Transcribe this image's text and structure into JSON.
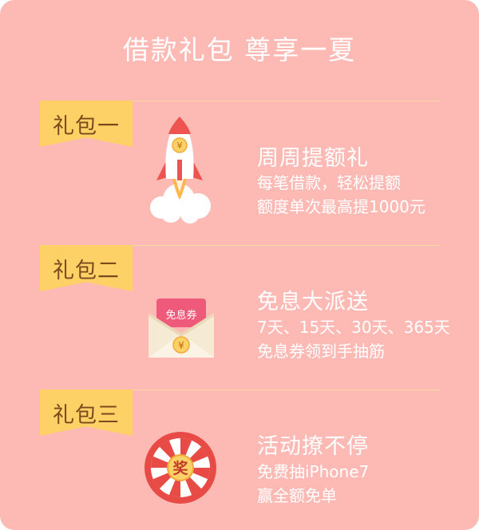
{
  "page": {
    "title": "借款礼包 尊享一夏"
  },
  "packages": [
    {
      "ribbon": "礼包一",
      "icon": "rocket-icon",
      "icon_symbol": "¥",
      "heading": "周周提额礼",
      "lines": [
        "每笔借款，轻松提额",
        "额度单次最高提1000元"
      ]
    },
    {
      "ribbon": "礼包二",
      "icon": "envelope-coupon-icon",
      "icon_label": "免息券",
      "icon_symbol": "¥",
      "heading": "免息大派送",
      "lines": [
        "7天、15天、30天、365天",
        "免息券领到手抽筋"
      ]
    },
    {
      "ribbon": "礼包三",
      "icon": "prize-wheel-icon",
      "icon_label": "奖",
      "heading": "活动撩不停",
      "lines": [
        "免费抽iPhone7",
        "赢全额免单"
      ]
    }
  ],
  "colors": {
    "background": "#fdbab5",
    "ribbon": "#fdd166",
    "ribbon_text": "#7a4a1e",
    "text": "#ffffff",
    "accent_red": "#ef5350"
  }
}
